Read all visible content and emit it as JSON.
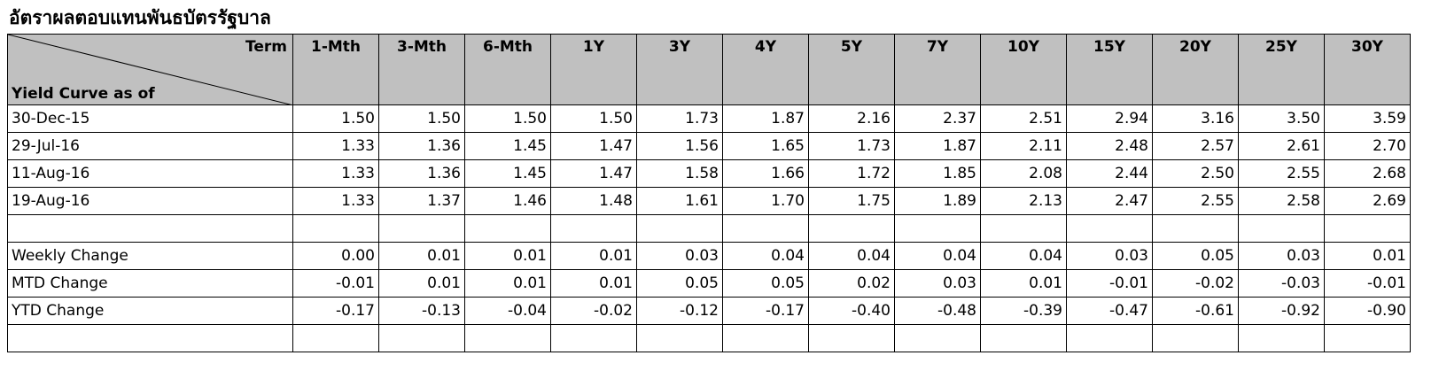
{
  "title": "อัตราผลตอบแทนพันธบัตรรัฐบาล",
  "header": {
    "term_label": "Term",
    "asof_label": "Yield Curve as of",
    "terms": [
      "1-Mth",
      "3-Mth",
      "6-Mth",
      "1Y",
      "3Y",
      "4Y",
      "5Y",
      "7Y",
      "10Y",
      "15Y",
      "20Y",
      "25Y",
      "30Y"
    ]
  },
  "rows": [
    {
      "label": "30-Dec-15",
      "values": [
        "1.50",
        "1.50",
        "1.50",
        "1.50",
        "1.73",
        "1.87",
        "2.16",
        "2.37",
        "2.51",
        "2.94",
        "3.16",
        "3.50",
        "3.59"
      ]
    },
    {
      "label": "29-Jul-16",
      "values": [
        "1.33",
        "1.36",
        "1.45",
        "1.47",
        "1.56",
        "1.65",
        "1.73",
        "1.87",
        "2.11",
        "2.48",
        "2.57",
        "2.61",
        "2.70"
      ]
    },
    {
      "label": "11-Aug-16",
      "values": [
        "1.33",
        "1.36",
        "1.45",
        "1.47",
        "1.58",
        "1.66",
        "1.72",
        "1.85",
        "2.08",
        "2.44",
        "2.50",
        "2.55",
        "2.68"
      ]
    },
    {
      "label": "19-Aug-16",
      "values": [
        "1.33",
        "1.37",
        "1.46",
        "1.48",
        "1.61",
        "1.70",
        "1.75",
        "1.89",
        "2.13",
        "2.47",
        "2.55",
        "2.58",
        "2.69"
      ]
    }
  ],
  "changes": [
    {
      "label": "Weekly Change",
      "values": [
        "0.00",
        "0.01",
        "0.01",
        "0.01",
        "0.03",
        "0.04",
        "0.04",
        "0.04",
        "0.04",
        "0.03",
        "0.05",
        "0.03",
        "0.01"
      ]
    },
    {
      "label": "MTD Change",
      "values": [
        "-0.01",
        "0.01",
        "0.01",
        "0.01",
        "0.05",
        "0.05",
        "0.02",
        "0.03",
        "0.01",
        "-0.01",
        "-0.02",
        "-0.03",
        "-0.01"
      ]
    },
    {
      "label": "YTD Change",
      "values": [
        "-0.17",
        "-0.13",
        "-0.04",
        "-0.02",
        "-0.12",
        "-0.17",
        "-0.40",
        "-0.48",
        "-0.39",
        "-0.47",
        "-0.61",
        "-0.92",
        "-0.90"
      ]
    }
  ],
  "colors": {
    "header_bg": "#c0c0c0",
    "border": "#000000"
  }
}
